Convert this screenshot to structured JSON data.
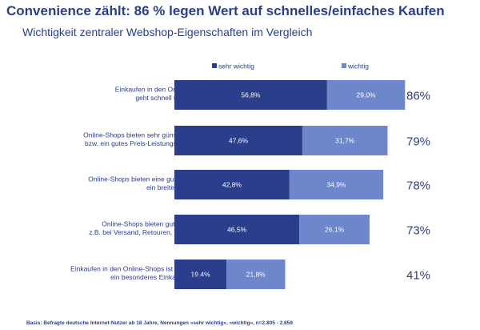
{
  "chart_data": {
    "type": "bar",
    "stacked": true,
    "orientation": "horizontal",
    "title": "Convenience zählt: 86 % legen Wert auf schnelles/einfaches Kaufen",
    "subtitle": "Wichtigkeit zentraler Webshop-Eigenschaften im Vergleich",
    "categories": [
      [
        "Einkaufen in den Online-Shops",
        "geht schnell und einfach"
      ],
      [
        "Online-Shops bieten sehr günstige Preise",
        "bzw. ein gutes Preis-Leistungs-Verhältnis"
      ],
      [
        "Online-Shops bieten eine gute Auswahl,",
        "ein breites Sortiment"
      ],
      [
        "Online-Shops bieten guten Service,",
        "z.B. bei Versand, Retouren, Rückfragen"
      ],
      [
        "Einkaufen in den Online-Shops ist angenehm,",
        "ein besonderes Einkaufserlebnis"
      ]
    ],
    "series": [
      {
        "name": "sehr wichtig",
        "values": [
          56.8,
          47.6,
          42.8,
          46.5,
          19.4
        ],
        "labels": [
          "56,8%",
          "47,6%",
          "42,8%",
          "46,5%",
          "19,4%"
        ],
        "color": "#2b3e8c"
      },
      {
        "name": "wichtig",
        "values": [
          29.0,
          31.7,
          34.9,
          26.1,
          21.8
        ],
        "labels": [
          "29,0%",
          "31,7%",
          "34,9%",
          "26,1%",
          "21,8%"
        ],
        "color": "#6e86cb"
      }
    ],
    "totals": [
      "86%",
      "79%",
      "78%",
      "73%",
      "41%"
    ],
    "legend_position": "top",
    "xlim": [
      0,
      100
    ]
  },
  "footnote": "Basis: Befragte deutsche Internet-Nutzer ab 18 Jahre, Nennungen »sehr wichtig«, »wichtig«, n=2.805 - 2.859"
}
